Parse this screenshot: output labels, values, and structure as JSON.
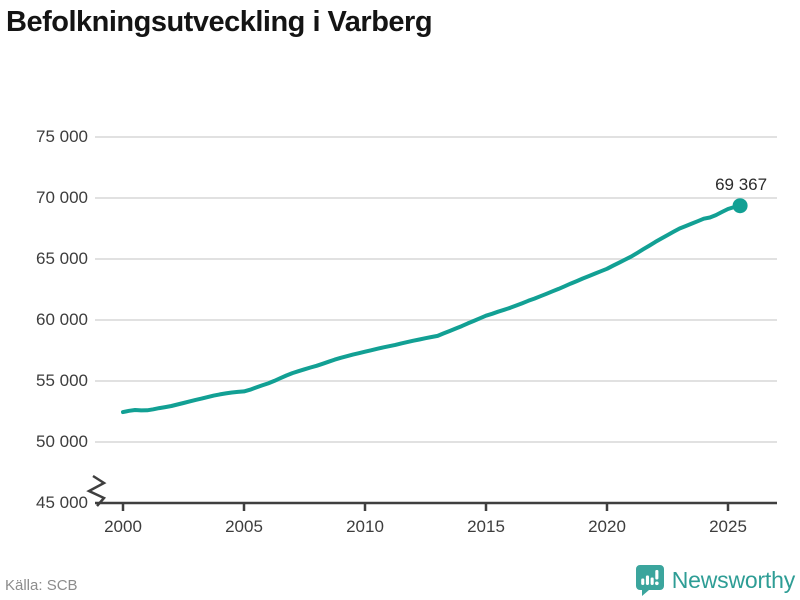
{
  "header": {
    "title": "Befolkningsutveckling i Varberg"
  },
  "chart_data": {
    "type": "line",
    "title": "Befolkningsutveckling i Varberg",
    "xlabel": "",
    "ylabel": "",
    "x_start": 2000,
    "x_step": 0.25,
    "values": [
      52450,
      52560,
      52620,
      52590,
      52600,
      52680,
      52780,
      52860,
      52950,
      53070,
      53200,
      53330,
      53450,
      53560,
      53680,
      53800,
      53900,
      53980,
      54060,
      54110,
      54150,
      54290,
      54470,
      54640,
      54800,
      55010,
      55230,
      55450,
      55650,
      55800,
      55960,
      56110,
      56250,
      56410,
      56580,
      56750,
      56900,
      57030,
      57160,
      57280,
      57400,
      57520,
      57640,
      57750,
      57850,
      57960,
      58080,
      58190,
      58300,
      58400,
      58510,
      58610,
      58700,
      58900,
      59100,
      59300,
      59500,
      59720,
      59930,
      60140,
      60350,
      60510,
      60680,
      60840,
      61000,
      61190,
      61380,
      61570,
      61750,
      61950,
      62150,
      62350,
      62550,
      62760,
      62980,
      63190,
      63400,
      63600,
      63800,
      64000,
      64200,
      64450,
      64700,
      64950,
      65200,
      65500,
      65800,
      66100,
      66400,
      66680,
      66960,
      67230,
      67500,
      67700,
      67900,
      68100,
      68300,
      68400,
      68600,
      68850,
      69100,
      69250,
      69367
    ],
    "last_value": 69367,
    "end_label": "69 367",
    "ylim": [
      45000,
      75000
    ],
    "yticks": [
      {
        "value": 75000,
        "label": "75 000"
      },
      {
        "value": 70000,
        "label": "70 000"
      },
      {
        "value": 65000,
        "label": "65 000"
      },
      {
        "value": 60000,
        "label": "60 000"
      },
      {
        "value": 55000,
        "label": "55 000"
      },
      {
        "value": 50000,
        "label": "50 000"
      },
      {
        "value": 45000,
        "label": "45 000"
      }
    ],
    "xticks": [
      {
        "value": 2000,
        "label": "2000"
      },
      {
        "value": 2005,
        "label": "2005"
      },
      {
        "value": 2010,
        "label": "2010"
      },
      {
        "value": 2015,
        "label": "2015"
      },
      {
        "value": 2020,
        "label": "2020"
      },
      {
        "value": 2025,
        "label": "2025"
      }
    ],
    "axis_break": true,
    "grid": true,
    "legend_position": "none",
    "colors": {
      "line": "#12a094",
      "marker": "#12a094",
      "grid": "#e1e1e1",
      "axis": "#3f3f3f",
      "label_text": "#3d3d3d"
    }
  },
  "footer": {
    "source": "Källa: SCB",
    "brand_name": "Newsworthy",
    "brand_color": "#2e9d95",
    "brand_icon": "bar-chart-speech-bubble-icon",
    "brand_icon_color": "#3ba59d"
  }
}
